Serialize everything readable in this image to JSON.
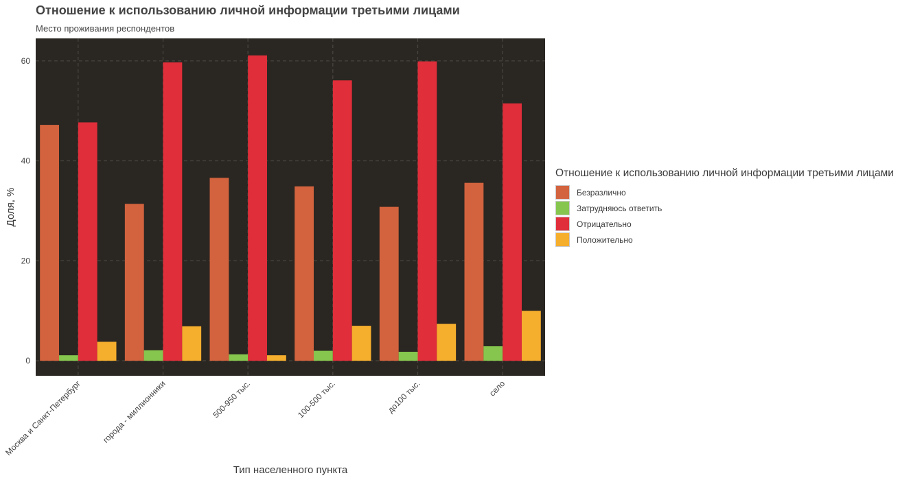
{
  "chart_data": {
    "type": "bar",
    "title": "Отношение к использованию личной информации третьими лицами",
    "subtitle": "Место проживания респондентов",
    "xlabel": "Тип населенного пункта",
    "ylabel": "Доля, %",
    "ylim": [
      -3,
      64.5
    ],
    "yticks": [
      0,
      20,
      40,
      60
    ],
    "grid": true,
    "legend_title": "Отношение к использованию личной информации третьими лицами",
    "legend_position": "right",
    "categories": [
      "Москва и Санкт-Петербург",
      "города - миллионники",
      "500-950 тыс.",
      "100-500 тыс.",
      "до100 тыс.",
      "село"
    ],
    "series": [
      {
        "name": "Безразлично",
        "color": "#D2633E",
        "values": [
          47.2,
          31.4,
          36.6,
          34.9,
          30.8,
          35.6
        ]
      },
      {
        "name": "Затрудняюсь ответить",
        "color": "#86C64E",
        "values": [
          1.1,
          2.1,
          1.3,
          2.0,
          1.8,
          2.9
        ]
      },
      {
        "name": "Отрицательно",
        "color": "#E02E3A",
        "values": [
          47.7,
          59.7,
          61.1,
          56.1,
          59.9,
          51.5
        ]
      },
      {
        "name": "Положительно",
        "color": "#F6AE2D",
        "values": [
          3.8,
          6.9,
          1.1,
          7.0,
          7.4,
          10.0
        ]
      }
    ],
    "panel_background": "#2A2621",
    "grid_color": "#4a4540"
  }
}
